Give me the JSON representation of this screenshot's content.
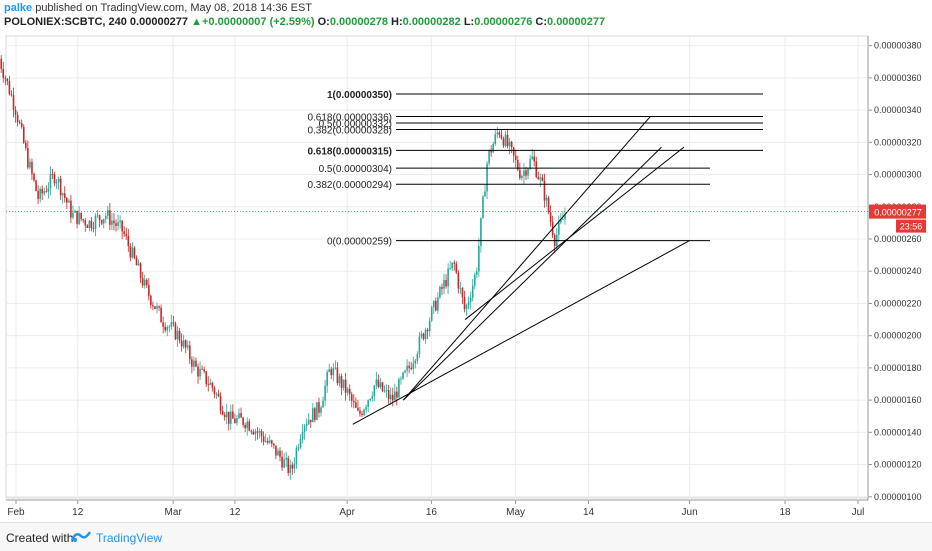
{
  "header": {
    "user": "palke",
    "published": " published on TradingView.com, May 08, 2018 14:36 EST",
    "symbol": "POLONIEX:SCBTC, 240",
    "last": "0.00000277",
    "arrow": "▲",
    "change": "+0.00000007 (+2.59%)",
    "o_label": "O:",
    "o": "0.00000278",
    "h_label": "H:",
    "h": "0.00000282",
    "l_label": "L:",
    "l": "0.00000276",
    "c_label": "C:",
    "c": "0.00000277"
  },
  "price_tag": {
    "value": "0.00000277",
    "countdown": "23:56"
  },
  "footer": {
    "created": "Created with",
    "brand": "TradingView"
  },
  "colors": {
    "up": "#26a69a",
    "down": "#c62828",
    "tag": "#e53935",
    "brand": "#2196f3",
    "drawing": "#000000"
  },
  "chart_data": {
    "type": "candlestick",
    "xaxis_ticks": [
      "Feb",
      "12",
      "Mar",
      "12",
      "Apr",
      "16",
      "May",
      "14",
      "Jun",
      "18",
      "Jul"
    ],
    "yaxis_ticks": [
      "0.00000380",
      "0.00000360",
      "0.00000340",
      "0.00000320",
      "0.00000300",
      "0.00000280",
      "0.00000260",
      "0.00000240",
      "0.00000220",
      "0.00000200",
      "0.00000180",
      "0.00000160",
      "0.00000140",
      "0.00000120",
      "0.00000100"
    ],
    "ylim": [
      9.8e-07,
      3.86e-06
    ],
    "last_price": 2.77e-06,
    "fib_upper": [
      {
        "label": "1(0.00000350)",
        "price": 3.5e-06
      },
      {
        "label": "0.618(0.00000336)",
        "price": 3.36e-06
      },
      {
        "label": "0.5(0.00000332)",
        "price": 3.32e-06
      },
      {
        "label": "0.382(0.00000328)",
        "price": 3.28e-06
      }
    ],
    "fib_lower": [
      {
        "label": "0.618(0.00000315)",
        "price": 3.15e-06
      },
      {
        "label": "0.5(0.00000304)",
        "price": 3.04e-06
      },
      {
        "label": "0.382(0.00000294)",
        "price": 2.94e-06
      },
      {
        "label": "0(0.00000259)",
        "price": 2.59e-06
      }
    ],
    "fan_lines": [
      {
        "x0": "Apr 02",
        "y0": 1.45e-06,
        "x1": "Jun 01",
        "y1": 2.59e-06
      },
      {
        "x0": "Apr 11",
        "y0": 1.6e-06,
        "x1": "May 27",
        "y1": 3.17e-06
      },
      {
        "x0": "Apr 11",
        "y0": 1.6e-06,
        "x1": "May 25",
        "y1": 3.36e-06
      },
      {
        "x0": "Apr 22",
        "y0": 2.1e-06,
        "x1": "May 31",
        "y1": 3.17e-06
      }
    ],
    "path": [
      [
        "Jan 29",
        3.72e-06
      ],
      [
        "Feb 01",
        3.4e-06
      ],
      [
        "Feb 03",
        3.1e-06
      ],
      [
        "Feb 05",
        2.85e-06
      ],
      [
        "Feb 08",
        3e-06
      ],
      [
        "Feb 11",
        2.75e-06
      ],
      [
        "Feb 14",
        2.7e-06
      ],
      [
        "Feb 17",
        2.75e-06
      ],
      [
        "Feb 20",
        2.65e-06
      ],
      [
        "Feb 24",
        2.3e-06
      ],
      [
        "Feb 27",
        2.1e-06
      ],
      [
        "Mar 02",
        2e-06
      ],
      [
        "Mar 05",
        1.8e-06
      ],
      [
        "Mar 08",
        1.68e-06
      ],
      [
        "Mar 11",
        1.48e-06
      ],
      [
        "Mar 14",
        1.47e-06
      ],
      [
        "Mar 17",
        1.37e-06
      ],
      [
        "Mar 20",
        1.25e-06
      ],
      [
        "Mar 22",
        1.15e-06
      ],
      [
        "Mar 24",
        1.45e-06
      ],
      [
        "Mar 27",
        1.55e-06
      ],
      [
        "Mar 29",
        1.8e-06
      ],
      [
        "Apr 01",
        1.65e-06
      ],
      [
        "Apr 03",
        1.5e-06
      ],
      [
        "Apr 06",
        1.7e-06
      ],
      [
        "Apr 09",
        1.6e-06
      ],
      [
        "Apr 12",
        1.8e-06
      ],
      [
        "Apr 15",
        2.05e-06
      ],
      [
        "Apr 18",
        2.3e-06
      ],
      [
        "Apr 20",
        2.45e-06
      ],
      [
        "Apr 22",
        2.15e-06
      ],
      [
        "Apr 24",
        2.4e-06
      ],
      [
        "Apr 26",
        3.1e-06
      ],
      [
        "Apr 28",
        3.28e-06
      ],
      [
        "Apr 30",
        3.15e-06
      ],
      [
        "May 02",
        3e-06
      ],
      [
        "May 04",
        3.1e-06
      ],
      [
        "May 06",
        2.9e-06
      ],
      [
        "May 08",
        2.6e-06
      ],
      [
        "May 10",
        2.77e-06
      ]
    ]
  }
}
